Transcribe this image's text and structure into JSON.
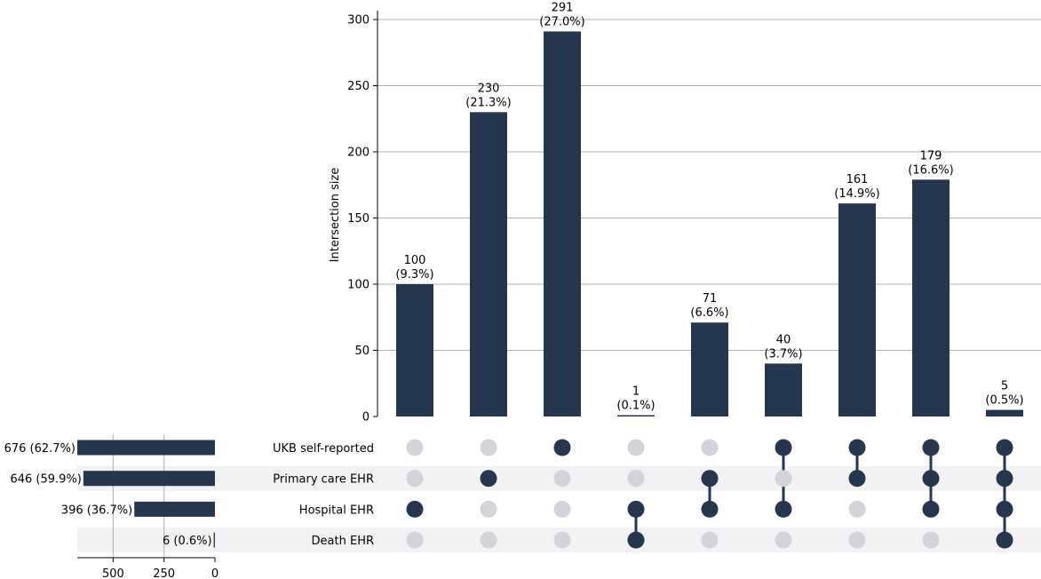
{
  "chart_data": {
    "type": "bar",
    "subtype": "upset",
    "title": "",
    "ylabel": "Intersection size",
    "ylim": [
      0,
      305
    ],
    "yticks": [
      0,
      50,
      100,
      150,
      200,
      250,
      300
    ],
    "grid": true,
    "bar_color": "#27364f",
    "dot_active_color": "#27364f",
    "dot_inactive_color": "#d2d4d9",
    "band_color": "#f2f2f5",
    "sets": [
      {
        "name": "UKB self-reported",
        "size": 676,
        "label": "676 (62.7%)"
      },
      {
        "name": "Primary care EHR",
        "size": 646,
        "label": "646 (59.9%)"
      },
      {
        "name": "Hospital EHR",
        "size": 396,
        "label": "396 (36.7%)"
      },
      {
        "name": "Death EHR",
        "size": 6,
        "label": "6 (0.6%)"
      }
    ],
    "set_size_axis": {
      "ticks": [
        500,
        250,
        0
      ],
      "xlim": [
        0,
        676
      ]
    },
    "intersections": [
      {
        "members": [
          2
        ],
        "value": 100,
        "pct": "(9.3%)"
      },
      {
        "members": [
          1
        ],
        "value": 230,
        "pct": "(21.3%)"
      },
      {
        "members": [
          0
        ],
        "value": 291,
        "pct": "(27.0%)"
      },
      {
        "members": [
          2,
          3
        ],
        "value": 1,
        "pct": "(0.1%)"
      },
      {
        "members": [
          1,
          2
        ],
        "value": 71,
        "pct": "(6.6%)"
      },
      {
        "members": [
          0,
          2
        ],
        "value": 40,
        "pct": "(3.7%)"
      },
      {
        "members": [
          0,
          1
        ],
        "value": 161,
        "pct": "(14.9%)"
      },
      {
        "members": [
          0,
          1,
          2
        ],
        "value": 179,
        "pct": "(16.6%)"
      },
      {
        "members": [
          0,
          1,
          2,
          3
        ],
        "value": 5,
        "pct": "(0.5%)"
      }
    ]
  }
}
